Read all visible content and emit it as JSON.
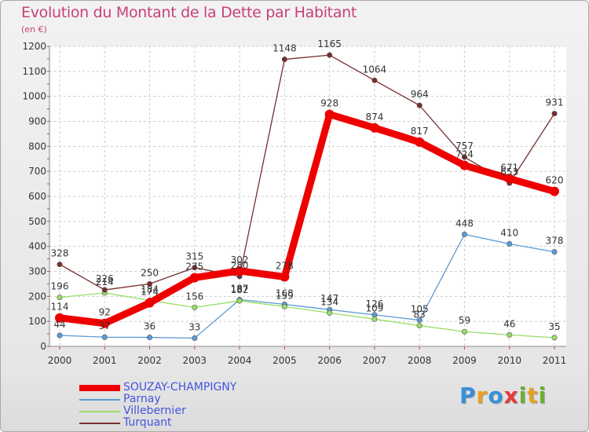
{
  "title": "Evolution du Montant de la Dette par Habitant",
  "unit": "(en €)",
  "chart_data": {
    "type": "line",
    "title": "Evolution du Montant de la Dette par Habitant",
    "subtitle": "(en €)",
    "xlabel": "",
    "ylabel": "",
    "x": [
      2000,
      2001,
      2002,
      2003,
      2004,
      2005,
      2006,
      2007,
      2008,
      2009,
      2010,
      2011
    ],
    "ylim": [
      0,
      1200
    ],
    "yticks": [
      0,
      100,
      200,
      300,
      400,
      500,
      600,
      700,
      800,
      900,
      1000,
      1100,
      1200
    ],
    "grid": true,
    "legend_position": "bottom-left",
    "series": [
      {
        "name": "SOUZAY-CHAMPIGNY",
        "color": "#ee0000",
        "values": [
          114,
          92,
          174,
          275,
          302,
          278,
          928,
          874,
          817,
          724,
          671,
          620
        ]
      },
      {
        "name": "Parnay",
        "color": "#5b9bd5",
        "values": [
          44,
          37,
          36,
          33,
          187,
          168,
          147,
          126,
          105,
          448,
          410,
          378
        ]
      },
      {
        "name": "Villebernier",
        "color": "#99dd66",
        "values": [
          196,
          214,
          184,
          156,
          182,
          159,
          134,
          109,
          83,
          59,
          46,
          35
        ]
      },
      {
        "name": "Turquant",
        "color": "#7a2e2e",
        "values": [
          328,
          226,
          250,
          315,
          280,
          1148,
          1165,
          1064,
          964,
          757,
          653,
          931
        ]
      }
    ]
  },
  "logo": {
    "text": "Proxiti",
    "letters": [
      "P",
      "r",
      "o",
      "x",
      "i",
      "t",
      "i"
    ],
    "colors": [
      "#3a8fd8",
      "#e8a020",
      "#3a8fd8",
      "#e83a3a",
      "#6ab030",
      "#e8a020",
      "#6ab030"
    ]
  }
}
